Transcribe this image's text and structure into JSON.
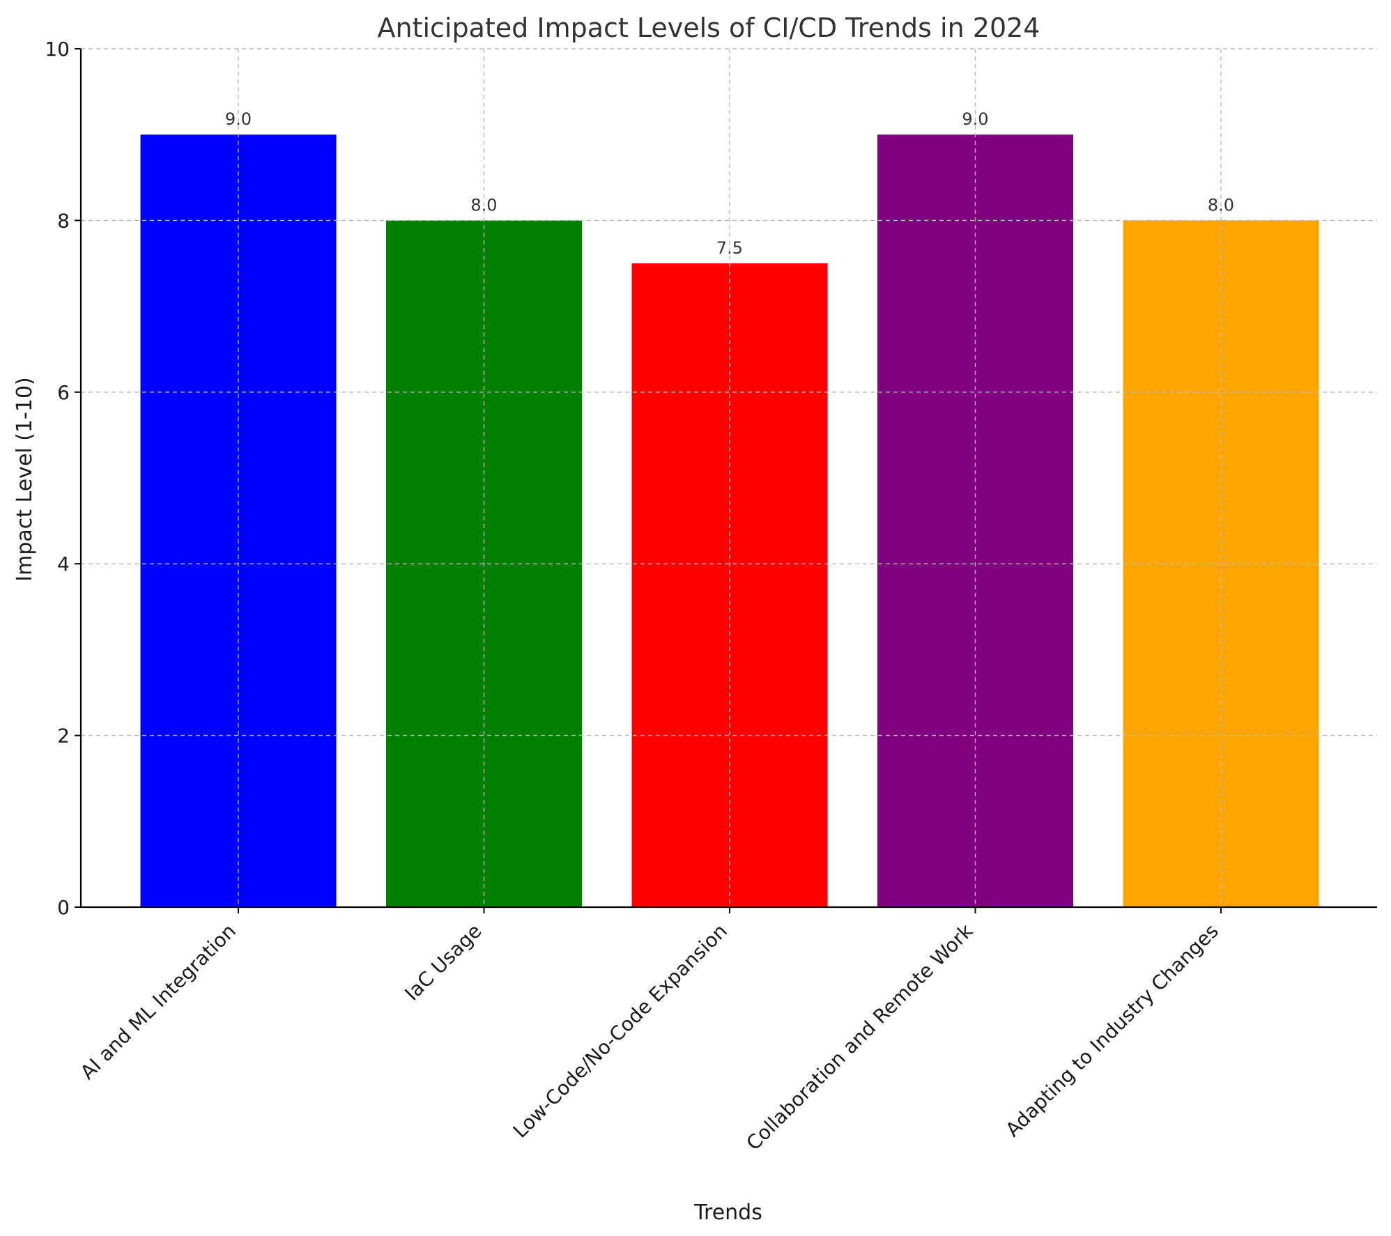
{
  "chart_data": {
    "type": "bar",
    "title": "Anticipated Impact Levels of CI/CD Trends in 2024",
    "xlabel": "Trends",
    "ylabel": "Impact Level (1-10)",
    "categories": [
      "AI and ML Integration",
      "IaC Usage",
      "Low-Code/No-Code Expansion",
      "Collaboration and Remote Work",
      "Adapting to Industry Changes"
    ],
    "values": [
      9.0,
      8.0,
      7.5,
      9.0,
      8.0
    ],
    "data_labels": [
      "9.0",
      "8.0",
      "7.5",
      "9.0",
      "8.0"
    ],
    "colors": [
      "#0000ff",
      "#008000",
      "#ff0000",
      "#800080",
      "#ffa500"
    ],
    "ylim": [
      0,
      10
    ],
    "yticks": [
      0,
      2,
      4,
      6,
      8,
      10
    ],
    "grid": true
  }
}
